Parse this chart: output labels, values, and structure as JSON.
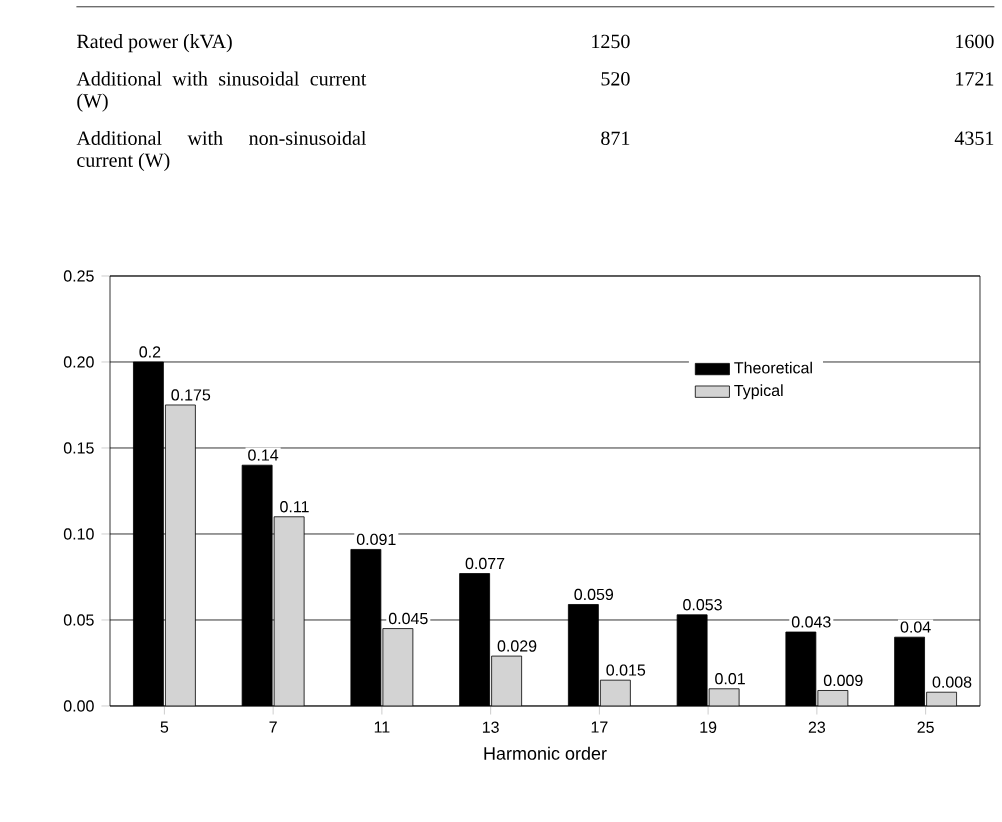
{
  "chart_data": {
    "type": "bar",
    "xlabel": "Harmonic order",
    "categories": [
      "5",
      "7",
      "11",
      "13",
      "17",
      "19",
      "23",
      "25"
    ],
    "series": [
      {
        "name": "Theoretical",
        "color": "#000000",
        "values": [
          0.2,
          0.14,
          0.091,
          0.077,
          0.059,
          0.053,
          0.043,
          0.04
        ]
      },
      {
        "name": "Typical",
        "color": "#d3d3d3",
        "values": [
          0.175,
          0.11,
          0.045,
          0.029,
          0.015,
          0.01,
          0.009,
          0.008
        ]
      }
    ],
    "ylim": [
      0,
      0.25
    ],
    "yticks": [
      {
        "value": 0,
        "label": "0.00"
      },
      {
        "value": 0.05,
        "label": "0.05"
      },
      {
        "value": 0.1,
        "label": "0.10"
      },
      {
        "value": 0.15,
        "label": "0.15"
      },
      {
        "value": 0.2,
        "label": "0.20"
      },
      {
        "value": 0.25,
        "label": "0.25"
      }
    ],
    "grid": "y",
    "legend": "top right",
    "data_labels": true,
    "annotations": [
      "Rated power (kVA)",
      "1250",
      "1600",
      "Additional with sinusoidal current (W)",
      "520",
      "1721",
      "Additional with non-sinusoidal current (W)",
      "871",
      "4351"
    ]
  }
}
